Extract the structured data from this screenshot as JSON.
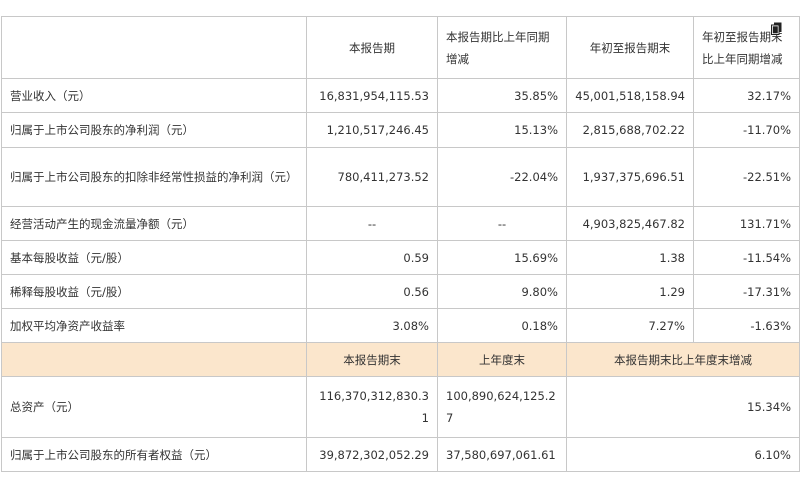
{
  "header": {
    "col1": "本报告期",
    "col2": "本报告期比上年同期增减",
    "col3": "年初至报告期末",
    "col4": "年初至报告期末比上年同期增减"
  },
  "rows": [
    {
      "label": "营业收入（元）",
      "v1": "16,831,954,115.53",
      "v2": "35.85%",
      "v3": "45,001,518,158.94",
      "v4": "32.17%"
    },
    {
      "label": "归属于上市公司股东的净利润（元）",
      "v1": "1,210,517,246.45",
      "v2": "15.13%",
      "v3": "2,815,688,702.22",
      "v4": "-11.70%"
    },
    {
      "label": "归属于上市公司股东的扣除非经常性损益的净利润（元）",
      "v1": "780,411,273.52",
      "v2": "-22.04%",
      "v3": "1,937,375,696.51",
      "v4": "-22.51%"
    },
    {
      "label": "经营活动产生的现金流量净额（元）",
      "v1": "--",
      "v2": "--",
      "v3": "4,903,825,467.82",
      "v4": "131.71%"
    },
    {
      "label": "基本每股收益（元/股）",
      "v1": "0.59",
      "v2": "15.69%",
      "v3": "1.38",
      "v4": "-11.54%"
    },
    {
      "label": "稀释每股收益（元/股）",
      "v1": "0.56",
      "v2": "9.80%",
      "v3": "1.29",
      "v4": "-17.31%"
    },
    {
      "label": "加权平均净资产收益率",
      "v1": "3.08%",
      "v2": "0.18%",
      "v3": "7.27%",
      "v4": "-1.63%"
    }
  ],
  "header2": {
    "col1": "本报告期末",
    "col2": "上年度末",
    "col3": "本报告期末比上年度末增减"
  },
  "rows2": [
    {
      "label": "总资产（元）",
      "v1": "116,370,312,830.31",
      "v2": "100,890,624,125.27",
      "v3": "15.34%"
    },
    {
      "label": "归属于上市公司股东的所有者权益（元）",
      "v1": "39,872,302,052.29",
      "v2": "37,580,697,061.61",
      "v3": "6.10%"
    }
  ],
  "icons": {
    "copy": "copy-icon"
  }
}
